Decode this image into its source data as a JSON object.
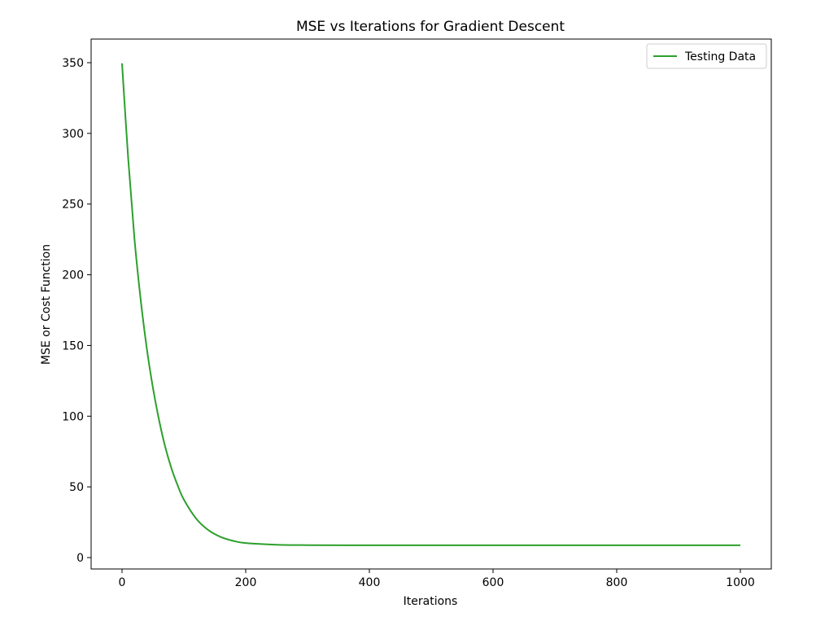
{
  "chart_data": {
    "type": "line",
    "title": "MSE vs Iterations for Gradient Descent",
    "xlabel": "Iterations",
    "ylabel": "MSE or Cost Function",
    "xlim": [
      -50,
      1050
    ],
    "ylim": [
      -8,
      350
    ],
    "xticks": [
      0,
      200,
      400,
      600,
      800,
      1000
    ],
    "yticks": [
      0,
      50,
      100,
      150,
      200,
      250,
      300,
      350
    ],
    "grid": false,
    "legend_position": "upper right",
    "series": [
      {
        "name": "Testing Data",
        "color": "#2ca02c",
        "x": [
          0,
          10,
          20,
          30,
          40,
          50,
          60,
          70,
          80,
          90,
          100,
          120,
          140,
          160,
          180,
          200,
          250,
          300,
          400,
          500,
          600,
          700,
          800,
          900,
          1000
        ],
        "y": [
          349.5,
          282,
          226,
          183,
          148,
          120,
          97,
          78,
          63,
          51,
          41,
          27.5,
          19.3,
          14.5,
          11.8,
          10.3,
          9.1,
          8.8,
          8.7,
          8.7,
          8.7,
          8.7,
          8.7,
          8.7,
          8.7
        ]
      }
    ]
  }
}
